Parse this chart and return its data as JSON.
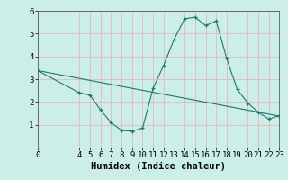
{
  "title": "",
  "xlabel": "Humidex (Indice chaleur)",
  "ylabel": "",
  "background_color": "#cceee8",
  "grid_color": "#e8b8b8",
  "line_color": "#1a7a6e",
  "xlim": [
    0,
    23
  ],
  "ylim": [
    0,
    6
  ],
  "yticks": [
    1,
    2,
    3,
    4,
    5,
    6
  ],
  "xticks": [
    0,
    4,
    5,
    6,
    7,
    8,
    9,
    10,
    11,
    12,
    13,
    14,
    15,
    16,
    17,
    18,
    19,
    20,
    21,
    22,
    23
  ],
  "curve1_x": [
    0,
    4,
    5,
    6,
    7,
    8,
    9,
    10,
    11,
    12,
    13,
    14,
    15,
    16,
    17,
    18,
    19,
    20,
    21,
    22,
    23
  ],
  "curve1_y": [
    3.38,
    2.4,
    2.3,
    1.65,
    1.1,
    0.75,
    0.72,
    0.85,
    2.6,
    3.6,
    4.75,
    5.65,
    5.72,
    5.35,
    5.55,
    3.9,
    2.55,
    1.95,
    1.55,
    1.25,
    1.4
  ],
  "curve2_x": [
    0,
    23
  ],
  "curve2_y": [
    3.38,
    1.38
  ],
  "xlabel_fontsize": 7.5,
  "tick_fontsize": 6.5
}
